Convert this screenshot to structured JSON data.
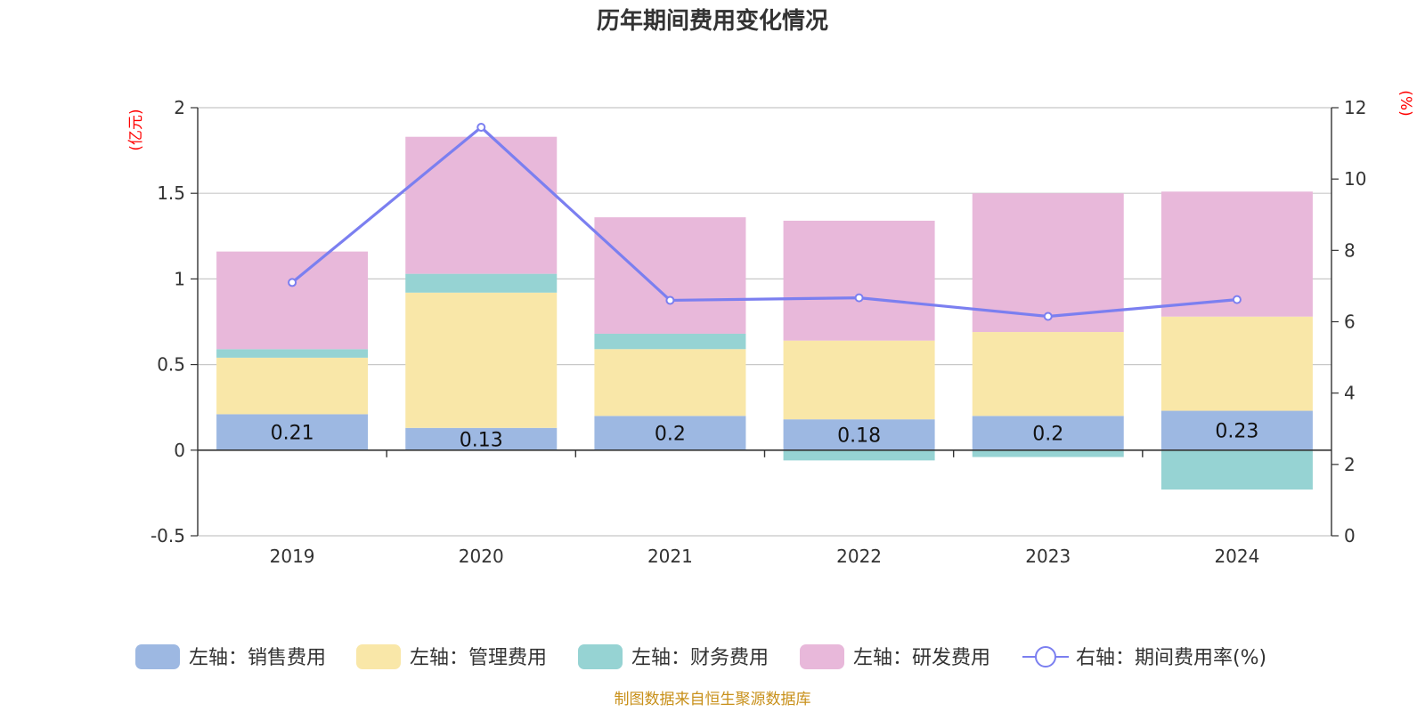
{
  "chart_data": {
    "type": "bar",
    "title": "历年期间费用变化情况",
    "categories": [
      "2019",
      "2020",
      "2021",
      "2022",
      "2023",
      "2024"
    ],
    "left_axis": {
      "unit": "(亿元)",
      "ylim": [
        -0.5,
        2
      ],
      "ticks": [
        "2",
        "1.5",
        "1",
        "0.5",
        "0",
        "-0.5"
      ],
      "tick_values": [
        2,
        1.5,
        1,
        0.5,
        0,
        -0.5
      ]
    },
    "right_axis": {
      "unit": "(%)",
      "ylim": [
        0,
        12
      ],
      "ticks": [
        "12",
        "10",
        "8",
        "6",
        "4",
        "2",
        "0"
      ],
      "tick_values": [
        12,
        10,
        8,
        6,
        4,
        2,
        0
      ]
    },
    "stacked": true,
    "grid": true,
    "legend_position": "bottom",
    "series": [
      {
        "name": "左轴：销售费用",
        "axis": "left",
        "type": "bar",
        "color": "#9db8e2",
        "values": [
          0.21,
          0.13,
          0.2,
          0.18,
          0.2,
          0.23
        ],
        "labels": [
          "0.21",
          "0.13",
          "0.2",
          "0.18",
          "0.2",
          "0.23"
        ]
      },
      {
        "name": "左轴：管理费用",
        "axis": "left",
        "type": "bar",
        "color": "#f9e7a8",
        "values": [
          0.33,
          0.79,
          0.39,
          0.46,
          0.49,
          0.55
        ]
      },
      {
        "name": "左轴：财务费用",
        "axis": "left",
        "type": "bar",
        "color": "#96d3d3",
        "values": [
          0.05,
          0.11,
          0.09,
          -0.06,
          -0.04,
          -0.23
        ]
      },
      {
        "name": "左轴：研发费用",
        "axis": "left",
        "type": "bar",
        "color": "#e8b8da",
        "values": [
          0.57,
          0.8,
          0.68,
          0.7,
          0.81,
          0.73
        ]
      },
      {
        "name": "右轴：期间费用率(%)",
        "axis": "right",
        "type": "line",
        "color": "#7b7ff0",
        "values": [
          7.1,
          11.45,
          6.6,
          6.67,
          6.15,
          6.62
        ]
      }
    ],
    "source": "制图数据来自恒生聚源数据库"
  }
}
